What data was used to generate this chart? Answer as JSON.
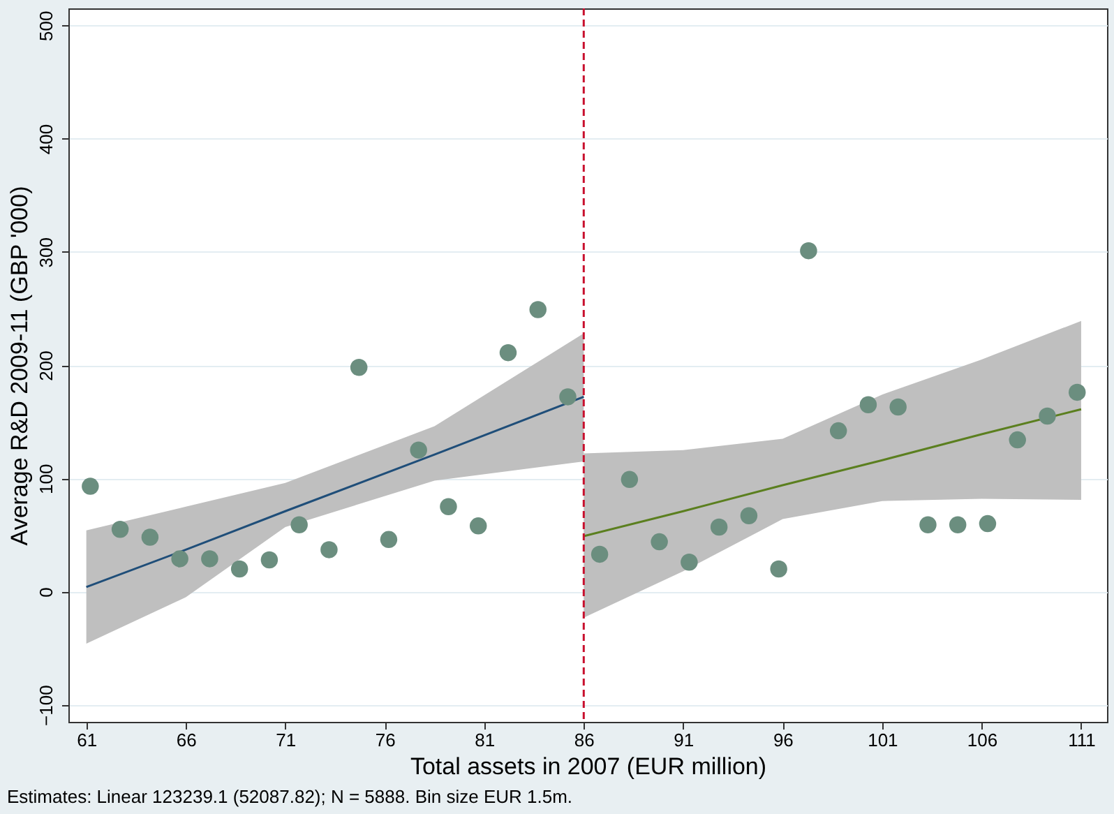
{
  "chart_data": {
    "type": "scatter",
    "xlabel": "Total assets in 2007 (EUR million)",
    "ylabel": "Average R&D 2009-11 (GBP '000)",
    "annotations": [
      "Estimates: Linear 123239.1 (52087.82); N = 5888. Bin size EUR 1.5m."
    ],
    "xlim": [
      60.1,
      112.3
    ],
    "ylim": [
      -115,
      515
    ],
    "xticks": [
      61,
      66,
      71,
      76,
      81,
      86,
      91,
      96,
      101,
      106,
      111
    ],
    "yticks": [
      -100,
      0,
      100,
      200,
      300,
      400,
      500
    ],
    "grid": "y",
    "marker": "circle",
    "ref_lines": [
      {
        "axis": "x",
        "value": 86,
        "color": "#c8102e",
        "line_style": "dashed"
      }
    ],
    "series": [
      {
        "type": "line",
        "marker": "none",
        "color": "#1f4e79",
        "x": [
          61,
          66,
          71,
          78.5,
          86
        ],
        "values": [
          4,
          37,
          71,
          121,
          172
        ],
        "lower": [
          -46,
          -5,
          57,
          98,
          115
        ],
        "upper": [
          54,
          75,
          96,
          146,
          228
        ]
      },
      {
        "type": "line",
        "marker": "none",
        "color": "#5b7f1f",
        "x": [
          86,
          91,
          96,
          101,
          106,
          111
        ],
        "values": [
          49,
          71,
          94,
          116,
          139,
          161
        ],
        "lower": [
          -23,
          18,
          64,
          80,
          82,
          81
        ],
        "upper": [
          122,
          125,
          135,
          174,
          205,
          239
        ]
      },
      {
        "color": "#6b8e7f",
        "x": [
          61.2,
          62.7,
          64.2,
          65.7,
          67.2,
          68.7,
          70.2,
          71.7,
          73.2,
          74.7,
          76.2,
          77.7,
          79.2,
          80.7,
          82.2,
          83.7,
          85.2,
          86.8,
          88.3,
          89.8,
          91.3,
          92.8,
          94.3,
          95.8,
          97.3,
          98.8,
          100.3,
          101.8,
          103.3,
          104.8,
          106.3,
          107.8,
          109.3,
          110.8
        ],
        "values": [
          93,
          55,
          48,
          29,
          29,
          20,
          28,
          59,
          37,
          198,
          46,
          125,
          75,
          58,
          211,
          249,
          172,
          33,
          99,
          44,
          26,
          57,
          67,
          20,
          301,
          142,
          165,
          163,
          59,
          59,
          60,
          134,
          155,
          176
        ]
      }
    ]
  }
}
